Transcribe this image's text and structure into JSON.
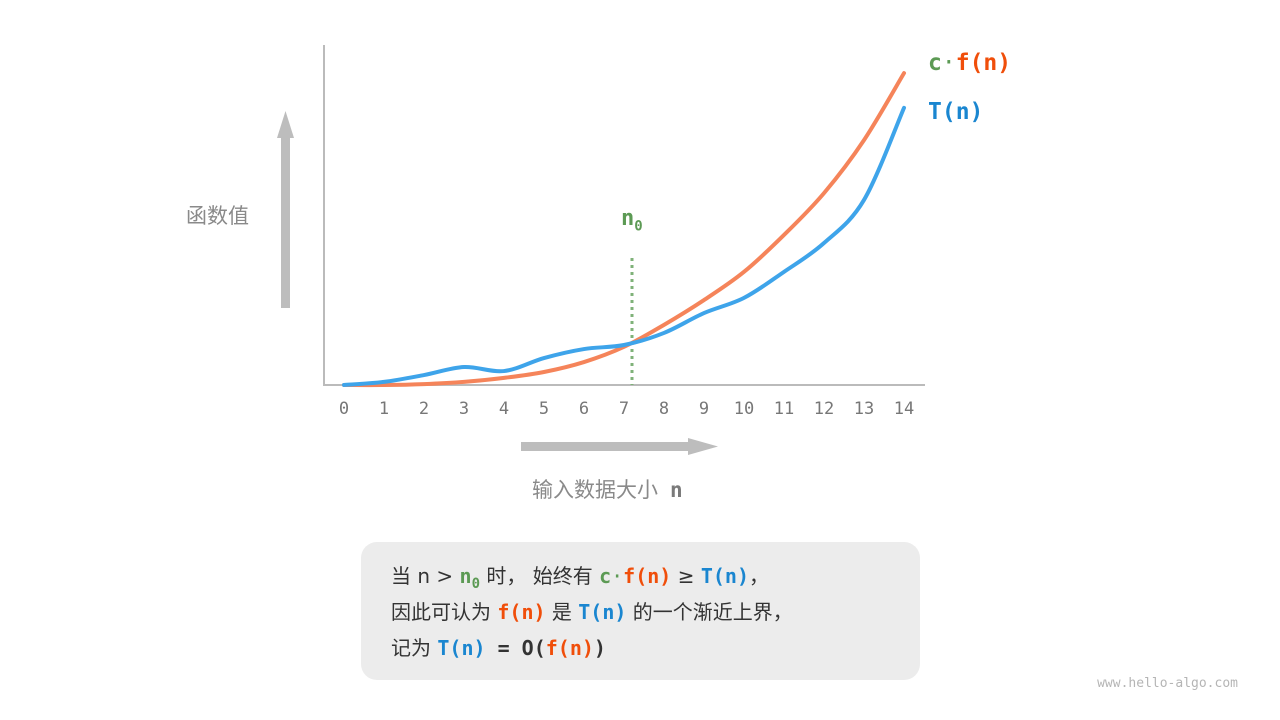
{
  "chart_data": {
    "type": "line",
    "x": [
      0,
      1,
      2,
      3,
      4,
      5,
      6,
      7,
      8,
      9,
      10,
      11,
      12,
      13,
      14
    ],
    "xticks": [
      "0",
      "1",
      "2",
      "3",
      "4",
      "5",
      "6",
      "7",
      "8",
      "9",
      "10",
      "11",
      "12",
      "13",
      "14"
    ],
    "xlabel": "输入数据大小",
    "xlabel_var": "n",
    "ylabel": "函数值",
    "ylim": [
      0,
      100
    ],
    "xlim": [
      -0.5,
      14.5
    ],
    "grid": false,
    "series": [
      {
        "name": "c·f(n)",
        "color": "#f5845a",
        "values": [
          0,
          0,
          0.3,
          1,
          2.3,
          4.2,
          7.4,
          12.3,
          19.4,
          27.4,
          36.5,
          48.4,
          61.9,
          79,
          100.6
        ]
      },
      {
        "name": "T(n)",
        "color": "#3ea4ea",
        "values": [
          0,
          1,
          3.2,
          5.8,
          4.5,
          8.7,
          11.6,
          12.9,
          16.8,
          23.2,
          28.1,
          36.5,
          45.8,
          59.7,
          89.4
        ]
      }
    ],
    "annotation": {
      "label": "n",
      "subscript": "0",
      "x": 7.2,
      "color": "#5c9a54"
    }
  },
  "legend": {
    "cf_c": "c",
    "cf_dot": "·",
    "cf_f": "f(n)",
    "t": "T(n)"
  },
  "caption": {
    "l1": [
      "当 n > ",
      "n",
      "0",
      " 时， 始终有 ",
      "c",
      "·",
      "f(n)",
      " ≥ ",
      "T(n)",
      "，"
    ],
    "l2": [
      "因此可认为 ",
      "f(n)",
      " 是 ",
      "T(n)",
      " 的一个渐近上界，"
    ],
    "l3": [
      "记为 ",
      "T(n)",
      " = ",
      "O(",
      "f(n)",
      ")"
    ]
  },
  "watermark": "www.hello-algo.com"
}
